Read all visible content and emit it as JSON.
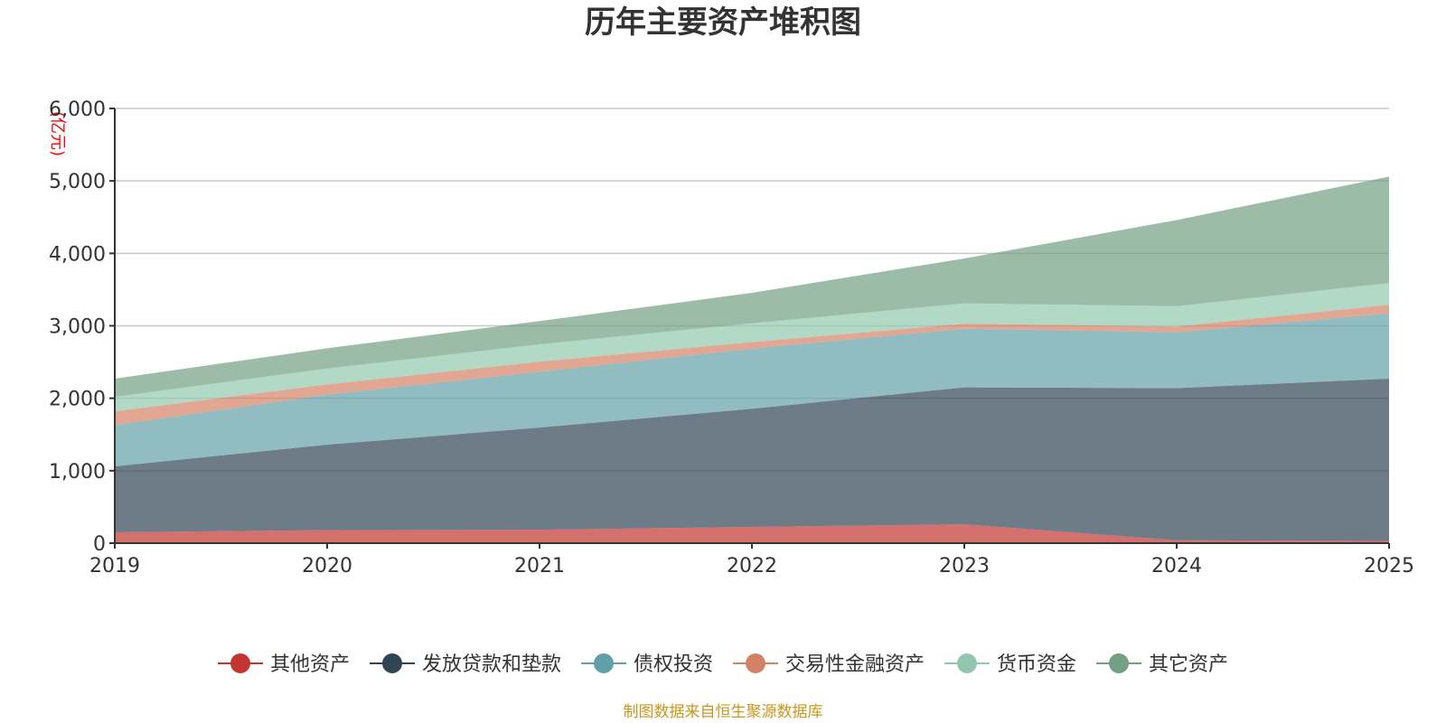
{
  "chart_data": {
    "type": "area",
    "stacked": true,
    "title": "历年主要资产堆积图",
    "unit_label": "(亿元)",
    "x": [
      "2019",
      "2020",
      "2021",
      "2022",
      "2023",
      "2024",
      "2025"
    ],
    "ylim": [
      0,
      6000
    ],
    "yticks": [
      0,
      1000,
      2000,
      3000,
      4000,
      5000,
      6000
    ],
    "ytick_labels": [
      "0",
      "1,000",
      "2,000",
      "3,000",
      "4,000",
      "5,000",
      "6,000"
    ],
    "grid": true,
    "legend_position": "bottom",
    "series": [
      {
        "name": "其他资产",
        "color": "#c23531",
        "values": [
          150,
          180,
          185,
          225,
          260,
          40,
          30
        ]
      },
      {
        "name": "发放贷款和垫款",
        "color": "#2f4554",
        "values": [
          910,
          1180,
          1410,
          1630,
          1890,
          2100,
          2240
        ]
      },
      {
        "name": "债权投资",
        "color": "#61a0a8",
        "values": [
          570,
          690,
          770,
          830,
          810,
          770,
          900
        ]
      },
      {
        "name": "交易性金融资产",
        "color": "#d48265",
        "values": [
          190,
          140,
          140,
          90,
          70,
          80,
          120
        ]
      },
      {
        "name": "货币资金",
        "color": "#91c7ae",
        "values": [
          200,
          220,
          240,
          260,
          280,
          280,
          300
        ]
      },
      {
        "name": "其它资产",
        "color": "#749f83",
        "values": [
          250,
          280,
          320,
          420,
          620,
          1190,
          1470
        ]
      }
    ],
    "source_note": "制图数据来自恒生聚源数据库"
  }
}
